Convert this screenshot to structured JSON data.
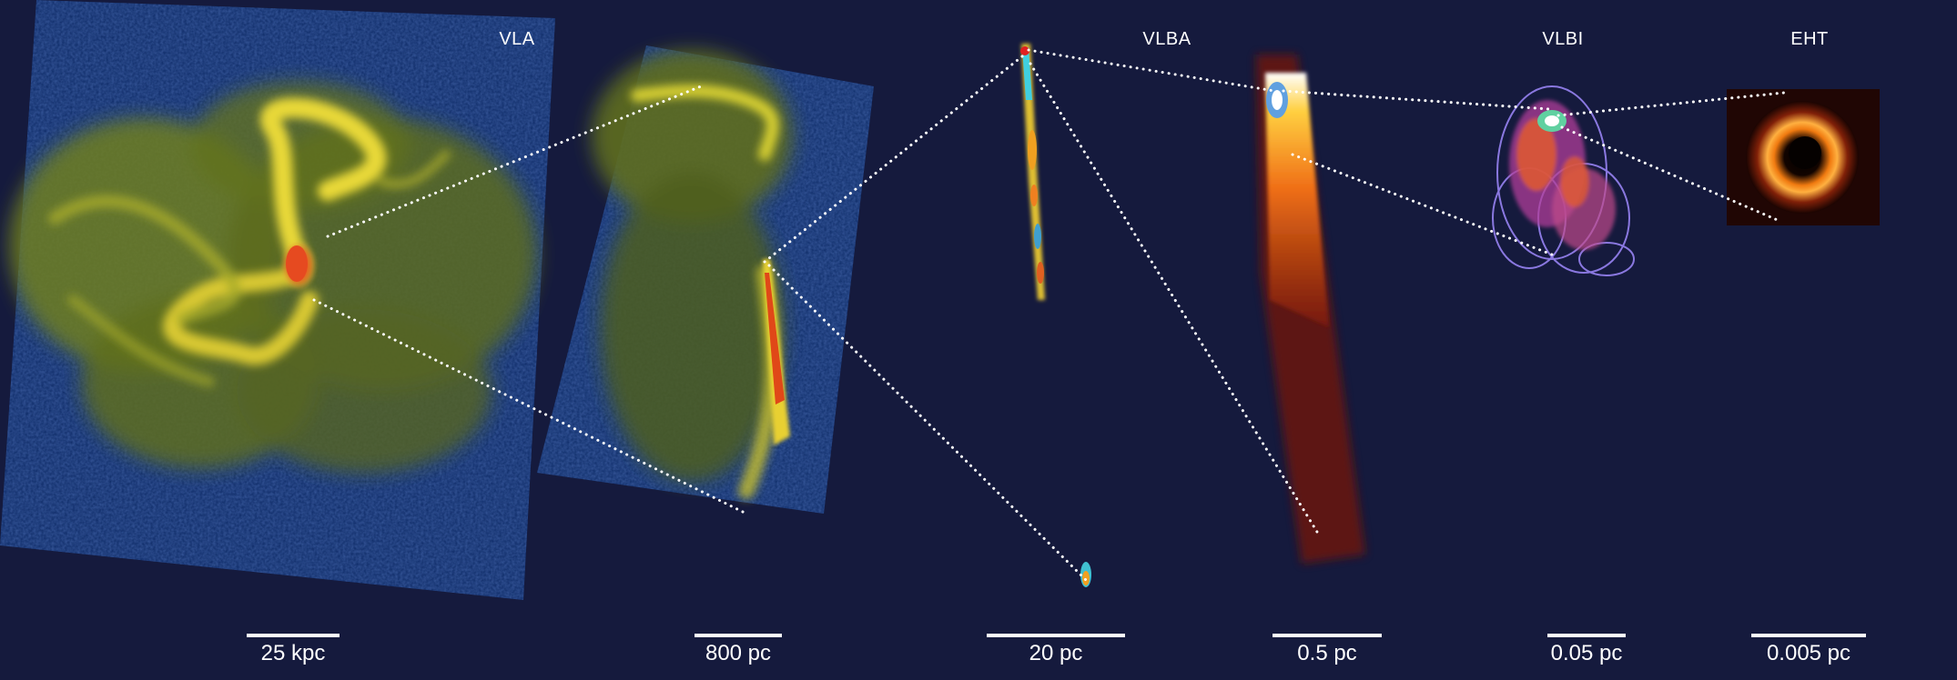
{
  "instruments": {
    "vla": "VLA",
    "vlba": "VLBA",
    "vlbi": "VLBI",
    "eht": "EHT"
  },
  "scale_bars": {
    "s1": "25 kpc",
    "s2": "800 pc",
    "s3": "20 pc",
    "s4": "0.5 pc",
    "s5": "0.05 pc",
    "s6": "0.005 pc"
  },
  "colors": {
    "background": "#151a3d",
    "vla_field": "#0d2a66",
    "vla_lobe": "#8a9a2a",
    "vla_bright": "#e0d030",
    "core": "#e85a20",
    "guide_dots": "#ffffff",
    "vlbi_contour": "#8a78e0",
    "eht_ring": "#f08020"
  }
}
